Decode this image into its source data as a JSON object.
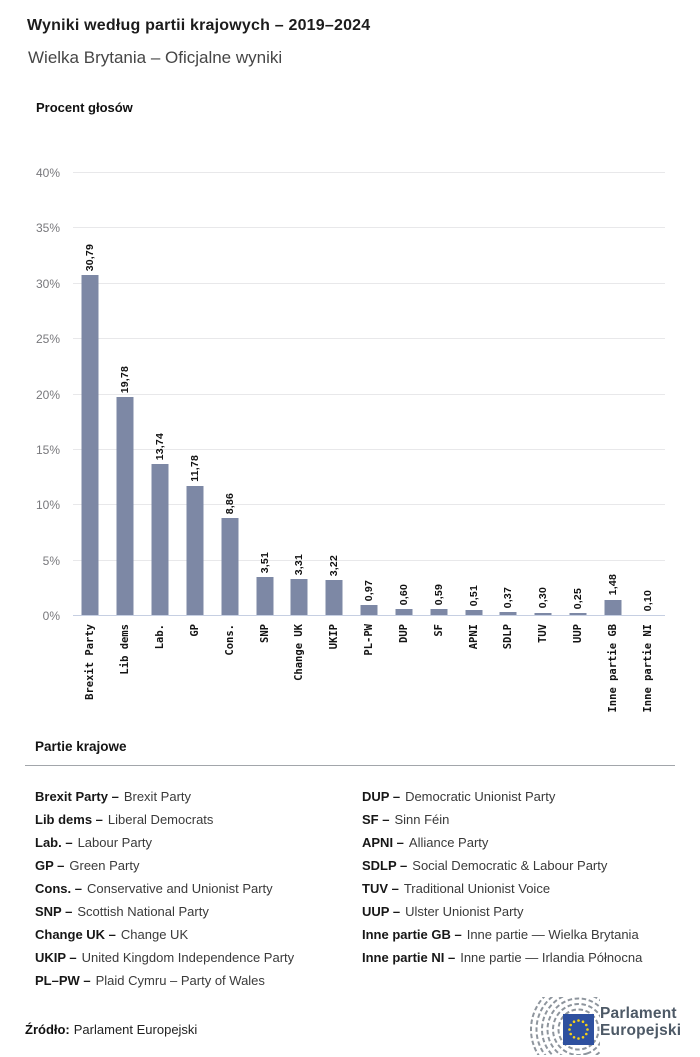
{
  "header": {
    "title": "Wyniki według partii krajowych – 2019–2024",
    "subtitle": "Wielka Brytania – Oficjalne wyniki"
  },
  "chart_data": {
    "type": "bar",
    "title": "Procent głosów",
    "categories": [
      "Brexit Party",
      "Lib dems",
      "Lab.",
      "GP",
      "Cons.",
      "SNP",
      "Change UK",
      "UKIP",
      "PL-PW",
      "DUP",
      "SF",
      "APNI",
      "SDLP",
      "TUV",
      "UUP",
      "Inne partie GB",
      "Inne partie NI"
    ],
    "values": [
      30.79,
      19.78,
      13.74,
      11.78,
      8.86,
      3.51,
      3.31,
      3.22,
      0.97,
      0.6,
      0.59,
      0.51,
      0.37,
      0.3,
      0.25,
      1.48,
      0.1
    ],
    "value_labels": [
      "30,79",
      "19,78",
      "13,74",
      "11,78",
      "8,86",
      "3,51",
      "3,31",
      "3,22",
      "0,97",
      "0,60",
      "0,59",
      "0,51",
      "0,37",
      "0,30",
      "0,25",
      "1,48",
      "0,10"
    ],
    "xlabel": "",
    "ylabel": "Procent głosów",
    "ylim": [
      0,
      40
    ],
    "ytick_step": 5,
    "ytick_labels": [
      "0%",
      "5%",
      "10%",
      "15%",
      "20%",
      "25%",
      "30%",
      "35%",
      "40%"
    ],
    "grid": true,
    "legend_position": "none",
    "bar_color": "#7d88a5"
  },
  "legend": {
    "heading": "Partie krajowe",
    "columns": [
      [
        {
          "term": "Brexit Party –",
          "desc": "Brexit Party"
        },
        {
          "term": "Lib dems –",
          "desc": "Liberal Democrats"
        },
        {
          "term": "Lab. –",
          "desc": "Labour Party"
        },
        {
          "term": "GP –",
          "desc": "Green Party"
        },
        {
          "term": "Cons. –",
          "desc": "Conservative and Unionist Party"
        },
        {
          "term": "SNP –",
          "desc": "Scottish National Party"
        },
        {
          "term": "Change UK –",
          "desc": "Change UK"
        },
        {
          "term": "UKIP –",
          "desc": "United Kingdom Independence Party"
        },
        {
          "term": "PL–PW –",
          "desc": "Plaid Cymru – Party of Wales"
        }
      ],
      [
        {
          "term": "DUP –",
          "desc": "Democratic Unionist Party"
        },
        {
          "term": "SF –",
          "desc": "Sinn Féin"
        },
        {
          "term": "APNI –",
          "desc": "Alliance Party"
        },
        {
          "term": "SDLP –",
          "desc": "Social Democratic & Labour Party"
        },
        {
          "term": "TUV –",
          "desc": "Traditional Unionist Voice"
        },
        {
          "term": "UUP –",
          "desc": "Ulster Unionist Party"
        },
        {
          "term": "Inne partie GB –",
          "desc": "Inne partie — Wielka Brytania"
        },
        {
          "term": "Inne partie NI –",
          "desc": "Inne partie — Irlandia Północna"
        }
      ]
    ]
  },
  "footer": {
    "source_label": "Źródło:",
    "source_text": "Parlament Europejski",
    "logo_line1": "Parlament",
    "logo_line2": "Europejski"
  },
  "colors": {
    "bar": "#7d88a5",
    "gridline": "#e8e8ea",
    "baseline": "#c6cfe2",
    "tick_text": "#78787c",
    "logo_text": "#4d5966",
    "eu_blue": "#2e509f",
    "star_yellow": "#f7d117",
    "arc_gray": "#8e959d"
  }
}
